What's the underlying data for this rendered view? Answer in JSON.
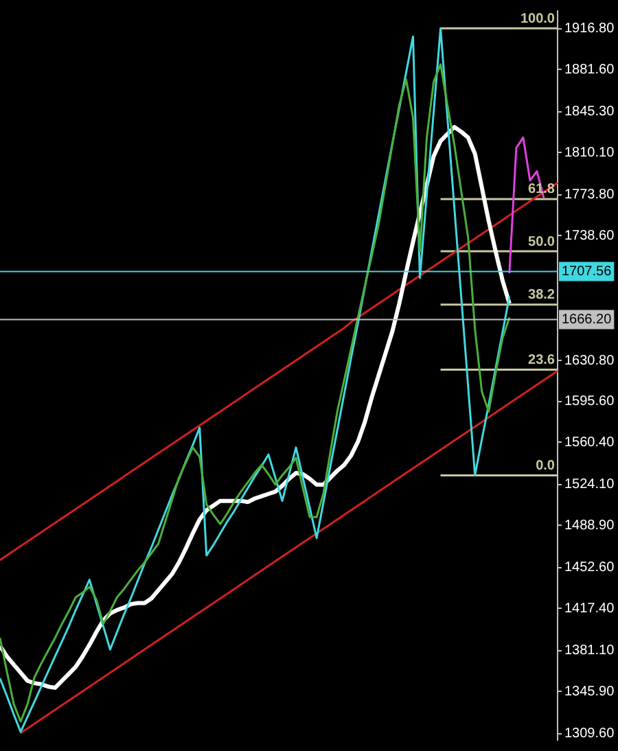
{
  "chart_data": {
    "type": "line",
    "categories": [
      null,
      null,
      null,
      null,
      null,
      null,
      null,
      null,
      null,
      null,
      null,
      null,
      null,
      null,
      null,
      null,
      null,
      null,
      null,
      null,
      null,
      null,
      null,
      null,
      null,
      null,
      null,
      null,
      null,
      null,
      null,
      null,
      null,
      null,
      null,
      null,
      null,
      null,
      null,
      null,
      null,
      null,
      null,
      null,
      null,
      null,
      null,
      null,
      null,
      null,
      null,
      null,
      null,
      null,
      null,
      null,
      null,
      null,
      null,
      null,
      null,
      null,
      null,
      null,
      null,
      null,
      null,
      null,
      null,
      null,
      null,
      null,
      null,
      null,
      null,
      null,
      null,
      null,
      null,
      null,
      null,
      null
    ],
    "ylim": [
      1304,
      1932
    ],
    "yticks": [
      {
        "value": 1309.6,
        "label": "1309.60"
      },
      {
        "value": 1345.9,
        "label": "1345.90"
      },
      {
        "value": 1381.1,
        "label": "1381.10"
      },
      {
        "value": 1417.4,
        "label": "1417.40"
      },
      {
        "value": 1452.6,
        "label": "1452.60"
      },
      {
        "value": 1488.9,
        "label": "1488.90"
      },
      {
        "value": 1524.1,
        "label": "1524.10"
      },
      {
        "value": 1560.4,
        "label": "1560.40"
      },
      {
        "value": 1595.6,
        "label": "1595.60"
      },
      {
        "value": 1630.8,
        "label": "1630.80"
      },
      {
        "value": 1738.6,
        "label": "1738.60"
      },
      {
        "value": 1773.8,
        "label": "1773.80"
      },
      {
        "value": 1810.1,
        "label": "1810.10"
      },
      {
        "value": 1845.3,
        "label": "1845.30"
      },
      {
        "value": 1881.6,
        "label": "1881.60"
      },
      {
        "value": 1916.8,
        "label": "1916.80"
      }
    ],
    "tick_labels": "y",
    "grid": false,
    "marker": "none",
    "line_style": "solid",
    "series": [
      {
        "color": "#4caf3c",
        "values": [
          1392,
          1363,
          1335,
          1320,
          1335,
          1358,
          1370,
          1381,
          1392,
          1404,
          1415,
          1427,
          1431,
          1436,
          1425,
          1404,
          1415,
          1427,
          1434,
          1442,
          1450,
          1457,
          1465,
          1473,
          1492,
          1511,
          1530,
          1543,
          1556,
          1548,
          1507,
          1498,
          1490,
          1499,
          1509,
          1518,
          1526,
          1534,
          1541,
          1533,
          1524,
          1532,
          1539,
          1547,
          1521,
          1496,
          1496,
          1517,
          1552,
          1587,
          1614,
          1641,
          1668,
          1695,
          1721,
          1748,
          1782,
          1817,
          1851,
          1873,
          1840,
          1725,
          1823,
          1871,
          1886,
          1851,
          1817,
          1777,
          1737,
          1658,
          1604,
          1587,
          1620,
          1650,
          1668,
          null,
          null,
          null,
          null,
          null,
          null,
          null
        ]
      },
      {
        "color": "#40d8e0",
        "values": [
          1357,
          1342,
          1326,
          1311,
          1324,
          1337,
          1350,
          1363,
          1376,
          1389,
          1402,
          1416,
          1429,
          1442,
          1422,
          1402,
          1382,
          1397,
          1412,
          1426,
          1441,
          1456,
          1470,
          1485,
          1500,
          1515,
          1529,
          1544,
          1558,
          1573,
          1463,
          1472,
          1482,
          1492,
          1501,
          1511,
          1521,
          1531,
          1540,
          1550,
          1530,
          1510,
          1533,
          1556,
          1530,
          1504,
          1478,
          1509,
          1540,
          1571,
          1602,
          1633,
          1663,
          1694,
          1725,
          1756,
          1787,
          1818,
          1848,
          1879,
          1910,
          1702,
          1774,
          1845,
          1917,
          1840,
          1763,
          1686,
          1609,
          1532,
          1563,
          1593,
          1624,
          1655,
          1686,
          null,
          null,
          null,
          null,
          null,
          null,
          null
        ]
      },
      {
        "color": "#ffffff",
        "values": [
          1385,
          1376,
          1369,
          1362,
          1355,
          1353,
          1352,
          1350,
          1349,
          1355,
          1361,
          1367,
          1376,
          1386,
          1397,
          1407,
          1413,
          1416,
          1418,
          1421,
          1422,
          1422,
          1426,
          1433,
          1440,
          1447,
          1457,
          1469,
          1482,
          1494,
          1502,
          1506,
          1510,
          1510,
          1510,
          1510,
          1509,
          1512,
          1514,
          1516,
          1518,
          1523,
          1529,
          1534,
          1533,
          1529,
          1524,
          1524,
          1530,
          1536,
          1541,
          1549,
          1561,
          1578,
          1599,
          1618,
          1637,
          1656,
          1680,
          1707,
          1733,
          1758,
          1782,
          1807,
          1820,
          1826,
          1832,
          1828,
          1823,
          1809,
          1780,
          1751,
          1725,
          1700,
          1680,
          null,
          null,
          null,
          null,
          null,
          null,
          null
        ]
      },
      {
        "color": "#e040e0",
        "values": [
          null,
          null,
          null,
          null,
          null,
          null,
          null,
          null,
          null,
          null,
          null,
          null,
          null,
          null,
          null,
          null,
          null,
          null,
          null,
          null,
          null,
          null,
          null,
          null,
          null,
          null,
          null,
          null,
          null,
          null,
          null,
          null,
          null,
          null,
          null,
          null,
          null,
          null,
          null,
          null,
          null,
          null,
          null,
          null,
          null,
          null,
          null,
          null,
          null,
          null,
          null,
          null,
          null,
          null,
          null,
          null,
          null,
          null,
          null,
          null,
          null,
          null,
          null,
          null,
          null,
          null,
          null,
          null,
          null,
          null,
          null,
          null,
          null,
          null,
          1706,
          1814,
          1823,
          1786,
          1794,
          1771,
          null,
          null
        ]
      },
      {
        "color": "#d02020",
        "values": [
          1459,
          1463,
          1467,
          1471,
          1475,
          1479,
          1483,
          1487,
          1491,
          1495,
          1499,
          1503,
          1507,
          1511,
          1515,
          1519,
          1523,
          1527,
          1531,
          1535,
          1539,
          1543,
          1547,
          1551,
          1555,
          1559,
          1563,
          1567,
          1571,
          1575,
          1579,
          1583,
          1587,
          1591,
          1595,
          1599,
          1603,
          1607,
          1611,
          1615,
          1619,
          1623,
          1627,
          1631,
          1635,
          1639,
          1643,
          1647,
          1651,
          1655,
          1659,
          1664,
          1668,
          1672,
          1676,
          1680,
          1684,
          1688,
          1692,
          1696,
          1700,
          1704,
          1708,
          1712,
          1716,
          1720,
          1724,
          1728,
          1732,
          1736,
          1740,
          1744,
          1748,
          1752,
          1756,
          1760,
          1764,
          1768,
          1772,
          1776,
          1780,
          1784
        ]
      },
      {
        "color": "#d02020",
        "values": [
          null,
          null,
          null,
          1310,
          1314,
          1318,
          1322,
          1326,
          1330,
          1334,
          1338,
          1342,
          1346,
          1350,
          1354,
          1358,
          1362,
          1366,
          1370,
          1374,
          1378,
          1382,
          1386,
          1390,
          1394,
          1398,
          1402,
          1406,
          1410,
          1414,
          1418,
          1422,
          1426,
          1430,
          1434,
          1438,
          1442,
          1446,
          1450,
          1454,
          1458,
          1462,
          1466,
          1470,
          1474,
          1478,
          1482,
          1486,
          1490,
          1494,
          1498,
          1502,
          1506,
          1510,
          1514,
          1518,
          1522,
          1526,
          1530,
          1534,
          1538,
          1542,
          1546,
          1550,
          1554,
          1558,
          1562,
          1566,
          1570,
          1574,
          1578,
          1582,
          1586,
          1590,
          1594,
          1598,
          1602,
          1606,
          1610,
          1614,
          1618,
          1622
        ]
      },
      {
        "name": "0.0",
        "color": "#c8c8a0",
        "values": [
          null,
          null,
          null,
          null,
          null,
          null,
          null,
          null,
          null,
          null,
          null,
          null,
          null,
          null,
          null,
          null,
          null,
          null,
          null,
          null,
          null,
          null,
          null,
          null,
          null,
          null,
          null,
          null,
          null,
          null,
          null,
          null,
          null,
          null,
          null,
          null,
          null,
          null,
          null,
          null,
          null,
          null,
          null,
          null,
          null,
          null,
          null,
          null,
          null,
          null,
          null,
          null,
          null,
          null,
          null,
          null,
          null,
          null,
          null,
          null,
          null,
          null,
          null,
          null,
          1532,
          1532,
          1532,
          1532,
          1532,
          1532,
          1532,
          1532,
          1532,
          1532,
          1532,
          1532,
          1532,
          1532,
          1532,
          1532,
          1532,
          1532
        ]
      },
      {
        "name": "23.6",
        "color": "#c8c8a0",
        "values": [
          null,
          null,
          null,
          null,
          null,
          null,
          null,
          null,
          null,
          null,
          null,
          null,
          null,
          null,
          null,
          null,
          null,
          null,
          null,
          null,
          null,
          null,
          null,
          null,
          null,
          null,
          null,
          null,
          null,
          null,
          null,
          null,
          null,
          null,
          null,
          null,
          null,
          null,
          null,
          null,
          null,
          null,
          null,
          null,
          null,
          null,
          null,
          null,
          null,
          null,
          null,
          null,
          null,
          null,
          null,
          null,
          null,
          null,
          null,
          null,
          null,
          null,
          null,
          null,
          1623,
          1623,
          1623,
          1623,
          1623,
          1623,
          1623,
          1623,
          1623,
          1623,
          1623,
          1623,
          1623,
          1623,
          1623,
          1623,
          1623,
          1623
        ]
      },
      {
        "name": "38.2",
        "color": "#c8c8a0",
        "values": [
          null,
          null,
          null,
          null,
          null,
          null,
          null,
          null,
          null,
          null,
          null,
          null,
          null,
          null,
          null,
          null,
          null,
          null,
          null,
          null,
          null,
          null,
          null,
          null,
          null,
          null,
          null,
          null,
          null,
          null,
          null,
          null,
          null,
          null,
          null,
          null,
          null,
          null,
          null,
          null,
          null,
          null,
          null,
          null,
          null,
          null,
          null,
          null,
          null,
          null,
          null,
          null,
          null,
          null,
          null,
          null,
          null,
          null,
          null,
          null,
          null,
          null,
          null,
          null,
          1679,
          1679,
          1679,
          1679,
          1679,
          1679,
          1679,
          1679,
          1679,
          1679,
          1679,
          1679,
          1679,
          1679,
          1679,
          1679,
          1679,
          1679
        ]
      },
      {
        "name": "50.0",
        "color": "#c8c8a0",
        "values": [
          null,
          null,
          null,
          null,
          null,
          null,
          null,
          null,
          null,
          null,
          null,
          null,
          null,
          null,
          null,
          null,
          null,
          null,
          null,
          null,
          null,
          null,
          null,
          null,
          null,
          null,
          null,
          null,
          null,
          null,
          null,
          null,
          null,
          null,
          null,
          null,
          null,
          null,
          null,
          null,
          null,
          null,
          null,
          null,
          null,
          null,
          null,
          null,
          null,
          null,
          null,
          null,
          null,
          null,
          null,
          null,
          null,
          null,
          null,
          null,
          null,
          null,
          null,
          null,
          1725,
          1725,
          1725,
          1725,
          1725,
          1725,
          1725,
          1725,
          1725,
          1725,
          1725,
          1725,
          1725,
          1725,
          1725,
          1725,
          1725,
          1725
        ]
      },
      {
        "name": "61.8",
        "color": "#c8c8a0",
        "values": [
          null,
          null,
          null,
          null,
          null,
          null,
          null,
          null,
          null,
          null,
          null,
          null,
          null,
          null,
          null,
          null,
          null,
          null,
          null,
          null,
          null,
          null,
          null,
          null,
          null,
          null,
          null,
          null,
          null,
          null,
          null,
          null,
          null,
          null,
          null,
          null,
          null,
          null,
          null,
          null,
          null,
          null,
          null,
          null,
          null,
          null,
          null,
          null,
          null,
          null,
          null,
          null,
          null,
          null,
          null,
          null,
          null,
          null,
          null,
          null,
          null,
          null,
          null,
          null,
          1770,
          1770,
          1770,
          1770,
          1770,
          1770,
          1770,
          1770,
          1770,
          1770,
          1770,
          1770,
          1770,
          1770,
          1770,
          1770,
          1770,
          1770
        ]
      },
      {
        "name": "100.0",
        "color": "#c8c8a0",
        "values": [
          null,
          null,
          null,
          null,
          null,
          null,
          null,
          null,
          null,
          null,
          null,
          null,
          null,
          null,
          null,
          null,
          null,
          null,
          null,
          null,
          null,
          null,
          null,
          null,
          null,
          null,
          null,
          null,
          null,
          null,
          null,
          null,
          null,
          null,
          null,
          null,
          null,
          null,
          null,
          null,
          null,
          null,
          null,
          null,
          null,
          null,
          null,
          null,
          null,
          null,
          null,
          null,
          null,
          null,
          null,
          null,
          null,
          null,
          null,
          null,
          null,
          null,
          null,
          null,
          1917,
          1917,
          1917,
          1917,
          1917,
          1917,
          1917,
          1917,
          1917,
          1917,
          1917,
          1917,
          1917,
          1917,
          1917,
          1917,
          1917,
          1917
        ]
      }
    ],
    "ref_lines": [
      {
        "axis": "y",
        "value": 1707.56,
        "label": "1707.56",
        "color": "#40d8e0"
      },
      {
        "axis": "y",
        "value": 1666.2,
        "label": "1666.20",
        "color": "#c0c0c0"
      }
    ]
  }
}
